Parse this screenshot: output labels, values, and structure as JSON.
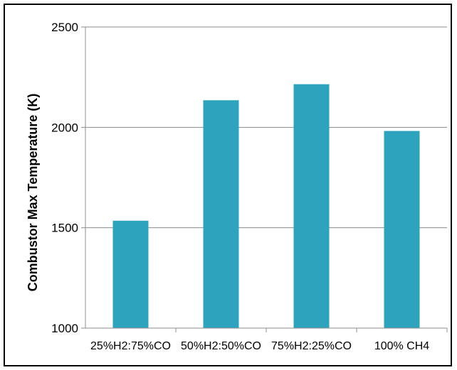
{
  "chart_data": {
    "type": "bar",
    "title": "",
    "xlabel": "",
    "ylabel": "Combustor Max Temperature (K)",
    "categories": [
      "25%H2:75%CO",
      "50%H2:50%CO",
      "75%H2:25%CO",
      "100% CH4"
    ],
    "values": [
      1535,
      2135,
      2215,
      1982
    ],
    "ylim": [
      1000,
      2500
    ],
    "yticks": [
      "1000",
      "1500",
      "2000",
      "2500"
    ],
    "grid": true,
    "legend": "none",
    "bar_color": "#2EA3BE",
    "grid_color": "#8C8C8C"
  }
}
